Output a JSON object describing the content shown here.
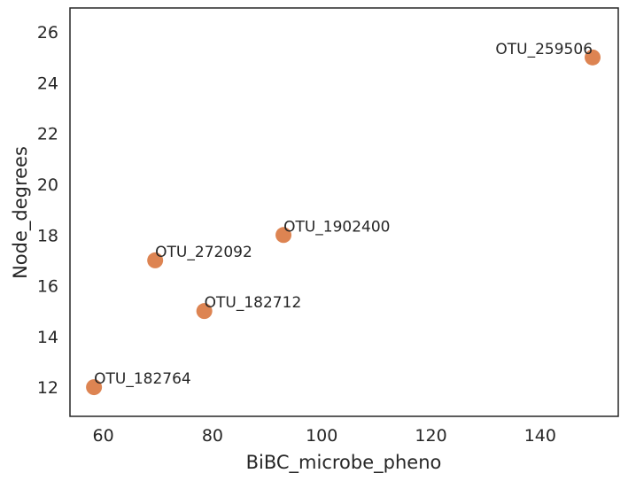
{
  "chart_data": {
    "type": "scatter",
    "title": "",
    "xlabel": "BiBC_microbe_pheno",
    "ylabel": "Node_degrees",
    "xlim": [
      53.9,
      154.3
    ],
    "ylim": [
      10.85,
      26.95
    ],
    "xticks": [
      60,
      80,
      100,
      120,
      140
    ],
    "yticks": [
      12,
      14,
      16,
      18,
      20,
      22,
      24,
      26
    ],
    "grid": false,
    "legend": "none",
    "marker_color": "#dd8452",
    "points": [
      {
        "label": "OTU_182764",
        "x": 58.3,
        "y": 12
      },
      {
        "label": "OTU_272092",
        "x": 69.5,
        "y": 17
      },
      {
        "label": "OTU_182712",
        "x": 78.5,
        "y": 15
      },
      {
        "label": "OTU_1902400",
        "x": 93.0,
        "y": 18
      },
      {
        "label": "OTU_259506",
        "x": 149.6,
        "y": 25
      }
    ]
  }
}
